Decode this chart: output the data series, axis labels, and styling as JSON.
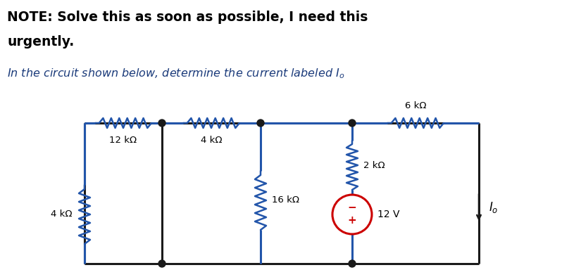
{
  "title_bold_line1": "NOTE: Solve this as soon as possible, I need this",
  "title_bold_line2": "urgently.",
  "subtitle": "In the circuit shown below, determine the current labeled $I_o$",
  "bg_color": "#ffffff",
  "wire_color_blue": "#2255aa",
  "wire_color_black": "#1a1a1a",
  "source_color": "#cc0000",
  "text_color": "#000000",
  "subtitle_color": "#1a3a7a",
  "label_12k": "12 kΩ",
  "label_4k_series": "4 kΩ",
  "label_6k": "6 kΩ",
  "label_4k_left": "4 kΩ",
  "label_16k": "16 kΩ",
  "label_2k": "2 kΩ",
  "label_12v": "12 V",
  "label_Io": "$I_o$"
}
